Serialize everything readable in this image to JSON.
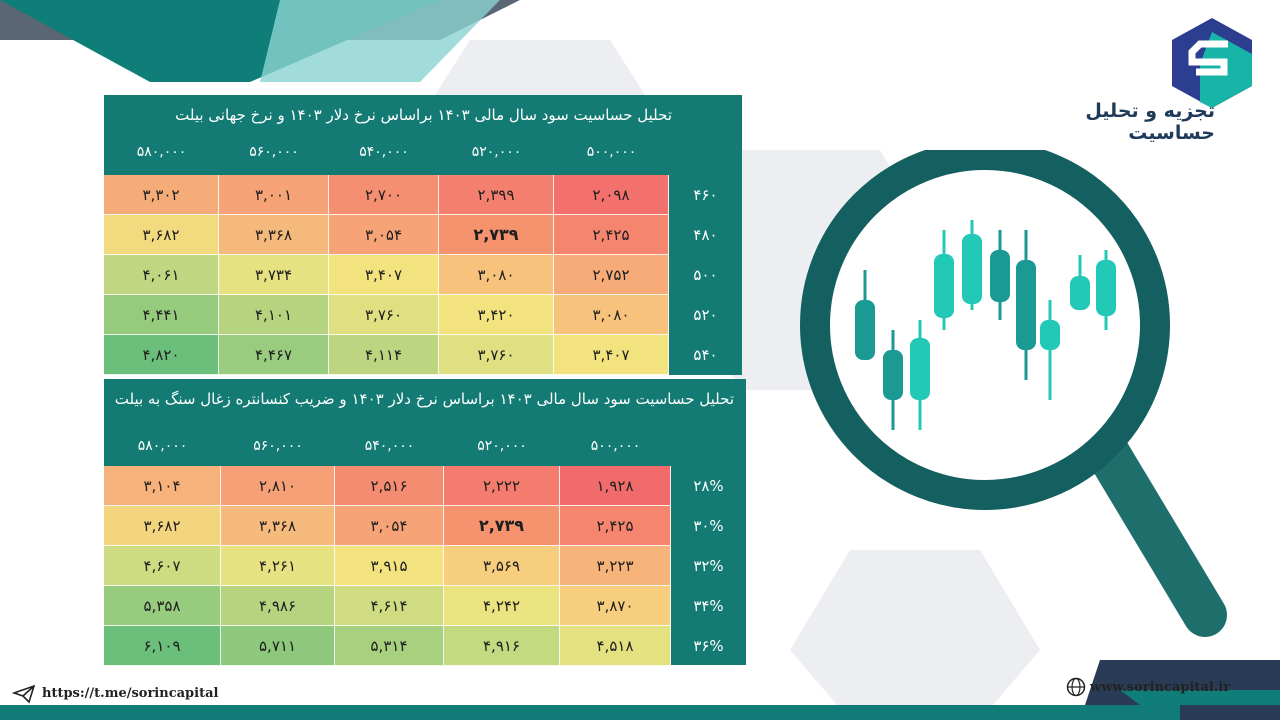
{
  "brand": {
    "title": "تجزیه و تحلیل حساسیت"
  },
  "footer": {
    "telegram": "https://t.me/sorincapital",
    "website": "www.sorincapital.ir"
  },
  "colors": {
    "teal": "#137b73",
    "red": "#f3726c",
    "orange": "#f6a978",
    "yellow": "#f3e37f",
    "green": "#6bbf7a"
  },
  "table1": {
    "title": "تحلیل حساسیت سود سال مالی ۱۴۰۳ براساس نرخ دلار ۱۴۰۳  و نرخ جهانی بیلت",
    "columns": [
      "۵۸۰,۰۰۰",
      "۵۶۰,۰۰۰",
      "۵۴۰,۰۰۰",
      "۵۲۰,۰۰۰",
      "۵۰۰,۰۰۰"
    ],
    "rows": [
      {
        "label": "۴۶۰",
        "values": [
          "۳,۳۰۲",
          "۳,۰۰۱",
          "۲,۷۰۰",
          "۲,۳۹۹",
          "۲,۰۹۸"
        ]
      },
      {
        "label": "۴۸۰",
        "values": [
          "۳,۶۸۲",
          "۳,۳۶۸",
          "۳,۰۵۴",
          "۲,۷۳۹",
          "۲,۴۲۵"
        ]
      },
      {
        "label": "۵۰۰",
        "values": [
          "۴,۰۶۱",
          "۳,۷۳۴",
          "۳,۴۰۷",
          "۳,۰۸۰",
          "۲,۷۵۲"
        ]
      },
      {
        "label": "۵۲۰",
        "values": [
          "۴,۴۴۱",
          "۴,۱۰۱",
          "۳,۷۶۰",
          "۳,۴۲۰",
          "۳,۰۸۰"
        ]
      },
      {
        "label": "۵۴۰",
        "values": [
          "۴,۸۲۰",
          "۴,۴۶۷",
          "۴,۱۱۴",
          "۳,۷۶۰",
          "۳,۴۰۷"
        ]
      }
    ],
    "cell_colors": [
      [
        "#f6ac78",
        "#f6a377",
        "#f58f72",
        "#f47f6f",
        "#f3716c"
      ],
      [
        "#f2da7f",
        "#f6b97c",
        "#f6a377",
        "#f5936f",
        "#f5856f"
      ],
      [
        "#c0d680",
        "#e7e281",
        "#f3e37f",
        "#f6c27c",
        "#f6ab78"
      ],
      [
        "#96cb7e",
        "#b6d480",
        "#dfe082",
        "#f3e37f",
        "#f6c27c"
      ],
      [
        "#6cbf7b",
        "#99cc7f",
        "#bdd581",
        "#dee082",
        "#f3e37f"
      ]
    ]
  },
  "table2": {
    "title": "تحلیل حساسیت سود سال مالی ۱۴۰۳ براساس نرخ دلار ۱۴۰۳  و ضریب کنسانتره زغال سنگ به بیلت",
    "columns": [
      "۵۸۰,۰۰۰",
      "۵۶۰,۰۰۰",
      "۵۴۰,۰۰۰",
      "۵۲۰,۰۰۰",
      "۵۰۰,۰۰۰"
    ],
    "rows": [
      {
        "label": "۲۸%",
        "values": [
          "۳,۱۰۴",
          "۲,۸۱۰",
          "۲,۵۱۶",
          "۲,۲۲۲",
          "۱,۹۲۸"
        ]
      },
      {
        "label": "۳۰%",
        "values": [
          "۳,۶۸۲",
          "۳,۳۶۸",
          "۳,۰۵۴",
          "۲,۷۳۹",
          "۲,۴۲۵"
        ]
      },
      {
        "label": "۳۲%",
        "values": [
          "۴,۶۰۷",
          "۴,۲۶۱",
          "۳,۹۱۵",
          "۳,۵۶۹",
          "۳,۲۲۳"
        ]
      },
      {
        "label": "۳۴%",
        "values": [
          "۵,۳۵۸",
          "۴,۹۸۶",
          "۴,۶۱۴",
          "۴,۲۴۲",
          "۳,۸۷۰"
        ]
      },
      {
        "label": "۳۶%",
        "values": [
          "۶,۱۰۹",
          "۵,۷۱۱",
          "۵,۳۱۴",
          "۴,۹۱۶",
          "۴,۵۱۸"
        ]
      }
    ],
    "cell_colors": [
      [
        "#f6b27a",
        "#f6a077",
        "#f48c72",
        "#f47c6f",
        "#f26b6b"
      ],
      [
        "#f4d57f",
        "#f6bb7c",
        "#f6a377",
        "#f5936f",
        "#f5856f"
      ],
      [
        "#cddc81",
        "#e7e281",
        "#f3e37f",
        "#f6ce7d",
        "#f6b37a"
      ],
      [
        "#97cb7e",
        "#b6d480",
        "#cfdc81",
        "#ebe380",
        "#f6ce7d"
      ],
      [
        "#6bbf7b",
        "#8ec87d",
        "#a7d17f",
        "#c4da81",
        "#e4e181"
      ]
    ]
  }
}
